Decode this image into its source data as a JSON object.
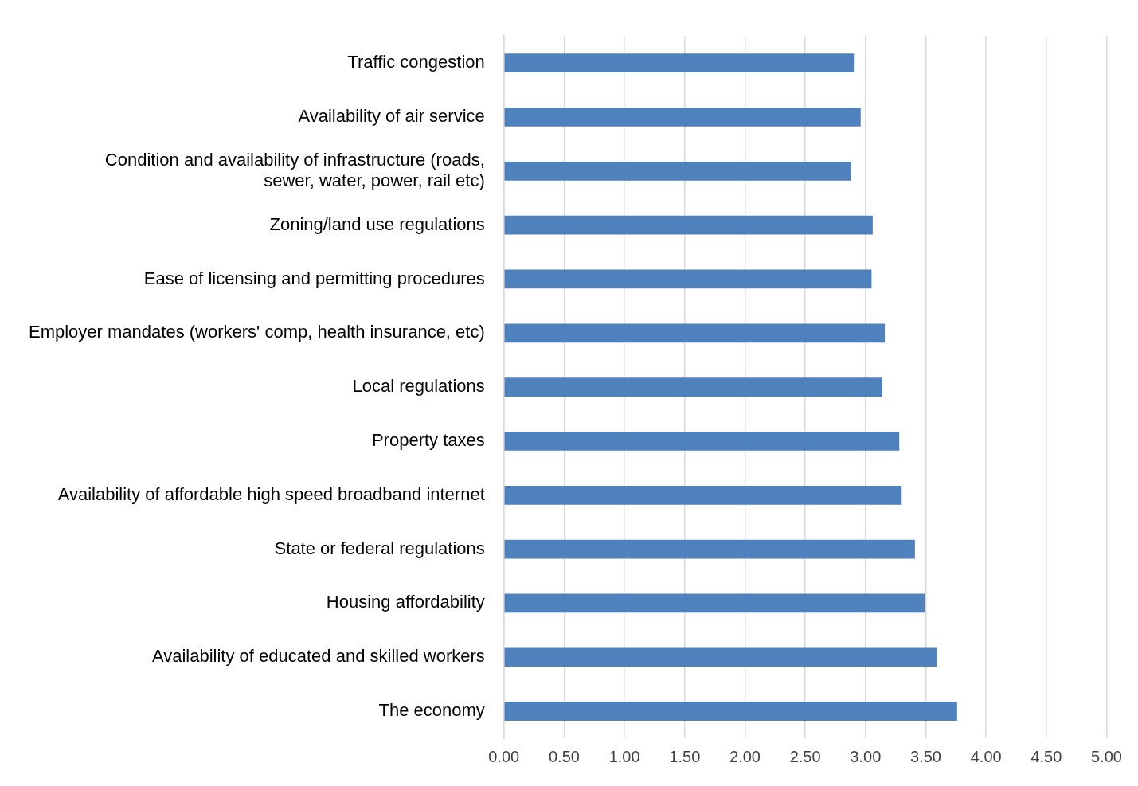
{
  "chart_data": {
    "type": "bar",
    "orientation": "horizontal",
    "categories": [
      "Traffic congestion",
      "Availability of air service",
      "Condition and availability of infrastructure (roads, sewer, water, power, rail etc)",
      "Zoning/land use regulations",
      "Ease of licensing and permitting procedures",
      "Employer mandates (workers' comp, health insurance, etc)",
      "Local regulations",
      "Property taxes",
      "Availability of affordable high speed broadband internet",
      "State or federal regulations",
      "Housing affordability",
      "Availability of educated and skilled workers",
      "The economy"
    ],
    "values": [
      2.91,
      2.96,
      2.88,
      3.06,
      3.05,
      3.16,
      3.14,
      3.28,
      3.3,
      3.41,
      3.49,
      3.59,
      3.76
    ],
    "color": "#4f81bd",
    "xlim": [
      0,
      5
    ],
    "xticks": [
      {
        "value": 0,
        "label": "0.00"
      },
      {
        "value": 0.5,
        "label": "0.50"
      },
      {
        "value": 1,
        "label": "1.00"
      },
      {
        "value": 1.5,
        "label": "1.50"
      },
      {
        "value": 2,
        "label": "2.00"
      },
      {
        "value": 2.5,
        "label": "2.50"
      },
      {
        "value": 3,
        "label": "3.00"
      },
      {
        "value": 3.5,
        "label": "3.50"
      },
      {
        "value": 4,
        "label": "4.00"
      },
      {
        "value": 4.5,
        "label": "4.50"
      },
      {
        "value": 5,
        "label": "5.00"
      }
    ],
    "grid": "x",
    "legend": false
  }
}
